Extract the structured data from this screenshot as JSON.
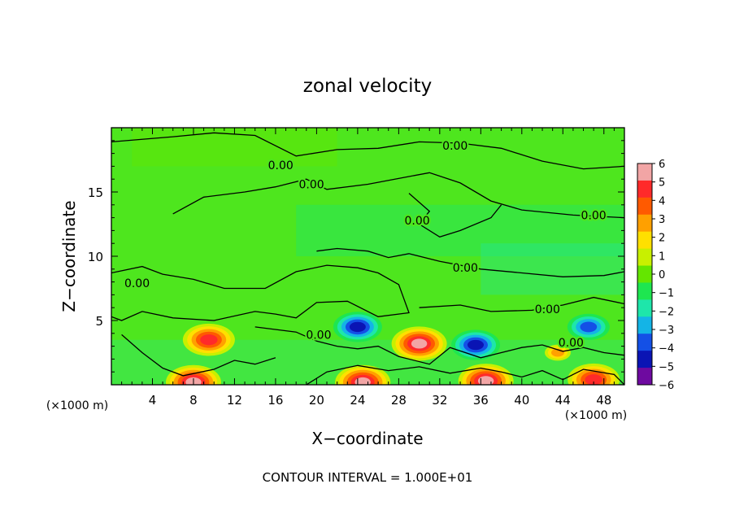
{
  "chart_data": {
    "type": "heatmap",
    "title": "zonal velocity",
    "xlabel": "X−coordinate",
    "ylabel": "Z−coordinate",
    "x_unit": "(×1000 m)",
    "x_unit_right": "(×1000 m)",
    "xlim": [
      0,
      50
    ],
    "ylim": [
      0,
      20
    ],
    "x_ticks": [
      4,
      8,
      12,
      16,
      20,
      24,
      28,
      32,
      36,
      40,
      44,
      48
    ],
    "y_ticks": [
      5,
      10,
      15
    ],
    "x_tick_labels": [
      "4",
      "8",
      "12",
      "16",
      "20",
      "24",
      "28",
      "32",
      "36",
      "40",
      "44",
      "48"
    ],
    "y_tick_labels": [
      "5",
      "10",
      "15"
    ],
    "colorbar": {
      "min": -6,
      "max": 6,
      "ticks": [
        6,
        5,
        4,
        3,
        2,
        1,
        0,
        -1,
        -2,
        -3,
        -4,
        -5,
        -6
      ],
      "tick_labels": [
        "6",
        "5",
        "4",
        "3",
        "2",
        "1",
        "0",
        "−1",
        "−2",
        "−3",
        "−4",
        "−5",
        "−6"
      ],
      "colors": [
        "#f2a5a5",
        "#ff2a2a",
        "#ff5a00",
        "#ffa000",
        "#ffe000",
        "#c8f000",
        "#64e600",
        "#1ee650",
        "#1ee6aa",
        "#14b4e6",
        "#1450e6",
        "#0a14b4",
        "#6e0aa0"
      ]
    },
    "contour_labels": [
      {
        "text": "0.00",
        "x": 33.5,
        "z": 18.6
      },
      {
        "text": "0.00",
        "x": 16.5,
        "z": 17.1
      },
      {
        "text": "0.00",
        "x": 19.5,
        "z": 15.6
      },
      {
        "text": "0.00",
        "x": 29.8,
        "z": 12.8
      },
      {
        "text": "0.00",
        "x": 47.0,
        "z": 13.2
      },
      {
        "text": "0.00",
        "x": 2.5,
        "z": 7.9
      },
      {
        "text": "0.00",
        "x": 34.5,
        "z": 9.1
      },
      {
        "text": "0.00",
        "x": 42.5,
        "z": 5.9
      },
      {
        "text": "0.00",
        "x": 20.2,
        "z": 3.9
      },
      {
        "text": "0.00",
        "x": 44.8,
        "z": 3.3
      }
    ],
    "features": [
      {
        "kind": "positive",
        "value": 6,
        "x": 30,
        "z": 3.2
      },
      {
        "kind": "positive",
        "value": 5,
        "x": 9.5,
        "z": 3.5
      },
      {
        "kind": "negative",
        "value": -5,
        "x": 24,
        "z": 4.5
      },
      {
        "kind": "negative",
        "value": -5,
        "x": 35.5,
        "z": 3.1
      },
      {
        "kind": "negative",
        "value": -4,
        "x": 46.5,
        "z": 4.5
      },
      {
        "kind": "positive",
        "value": 6,
        "x": 24.5,
        "z": 0.2
      },
      {
        "kind": "positive",
        "value": 6,
        "x": 36.5,
        "z": 0.3
      },
      {
        "kind": "positive",
        "value": 6,
        "x": 8,
        "z": 0.2
      },
      {
        "kind": "positive",
        "value": 5,
        "x": 47,
        "z": 0.4
      },
      {
        "kind": "positive",
        "value": 3,
        "x": 43.5,
        "z": 2.5
      }
    ]
  },
  "footer": {
    "contour_interval": "CONTOUR INTERVAL = 1.000E+01"
  }
}
